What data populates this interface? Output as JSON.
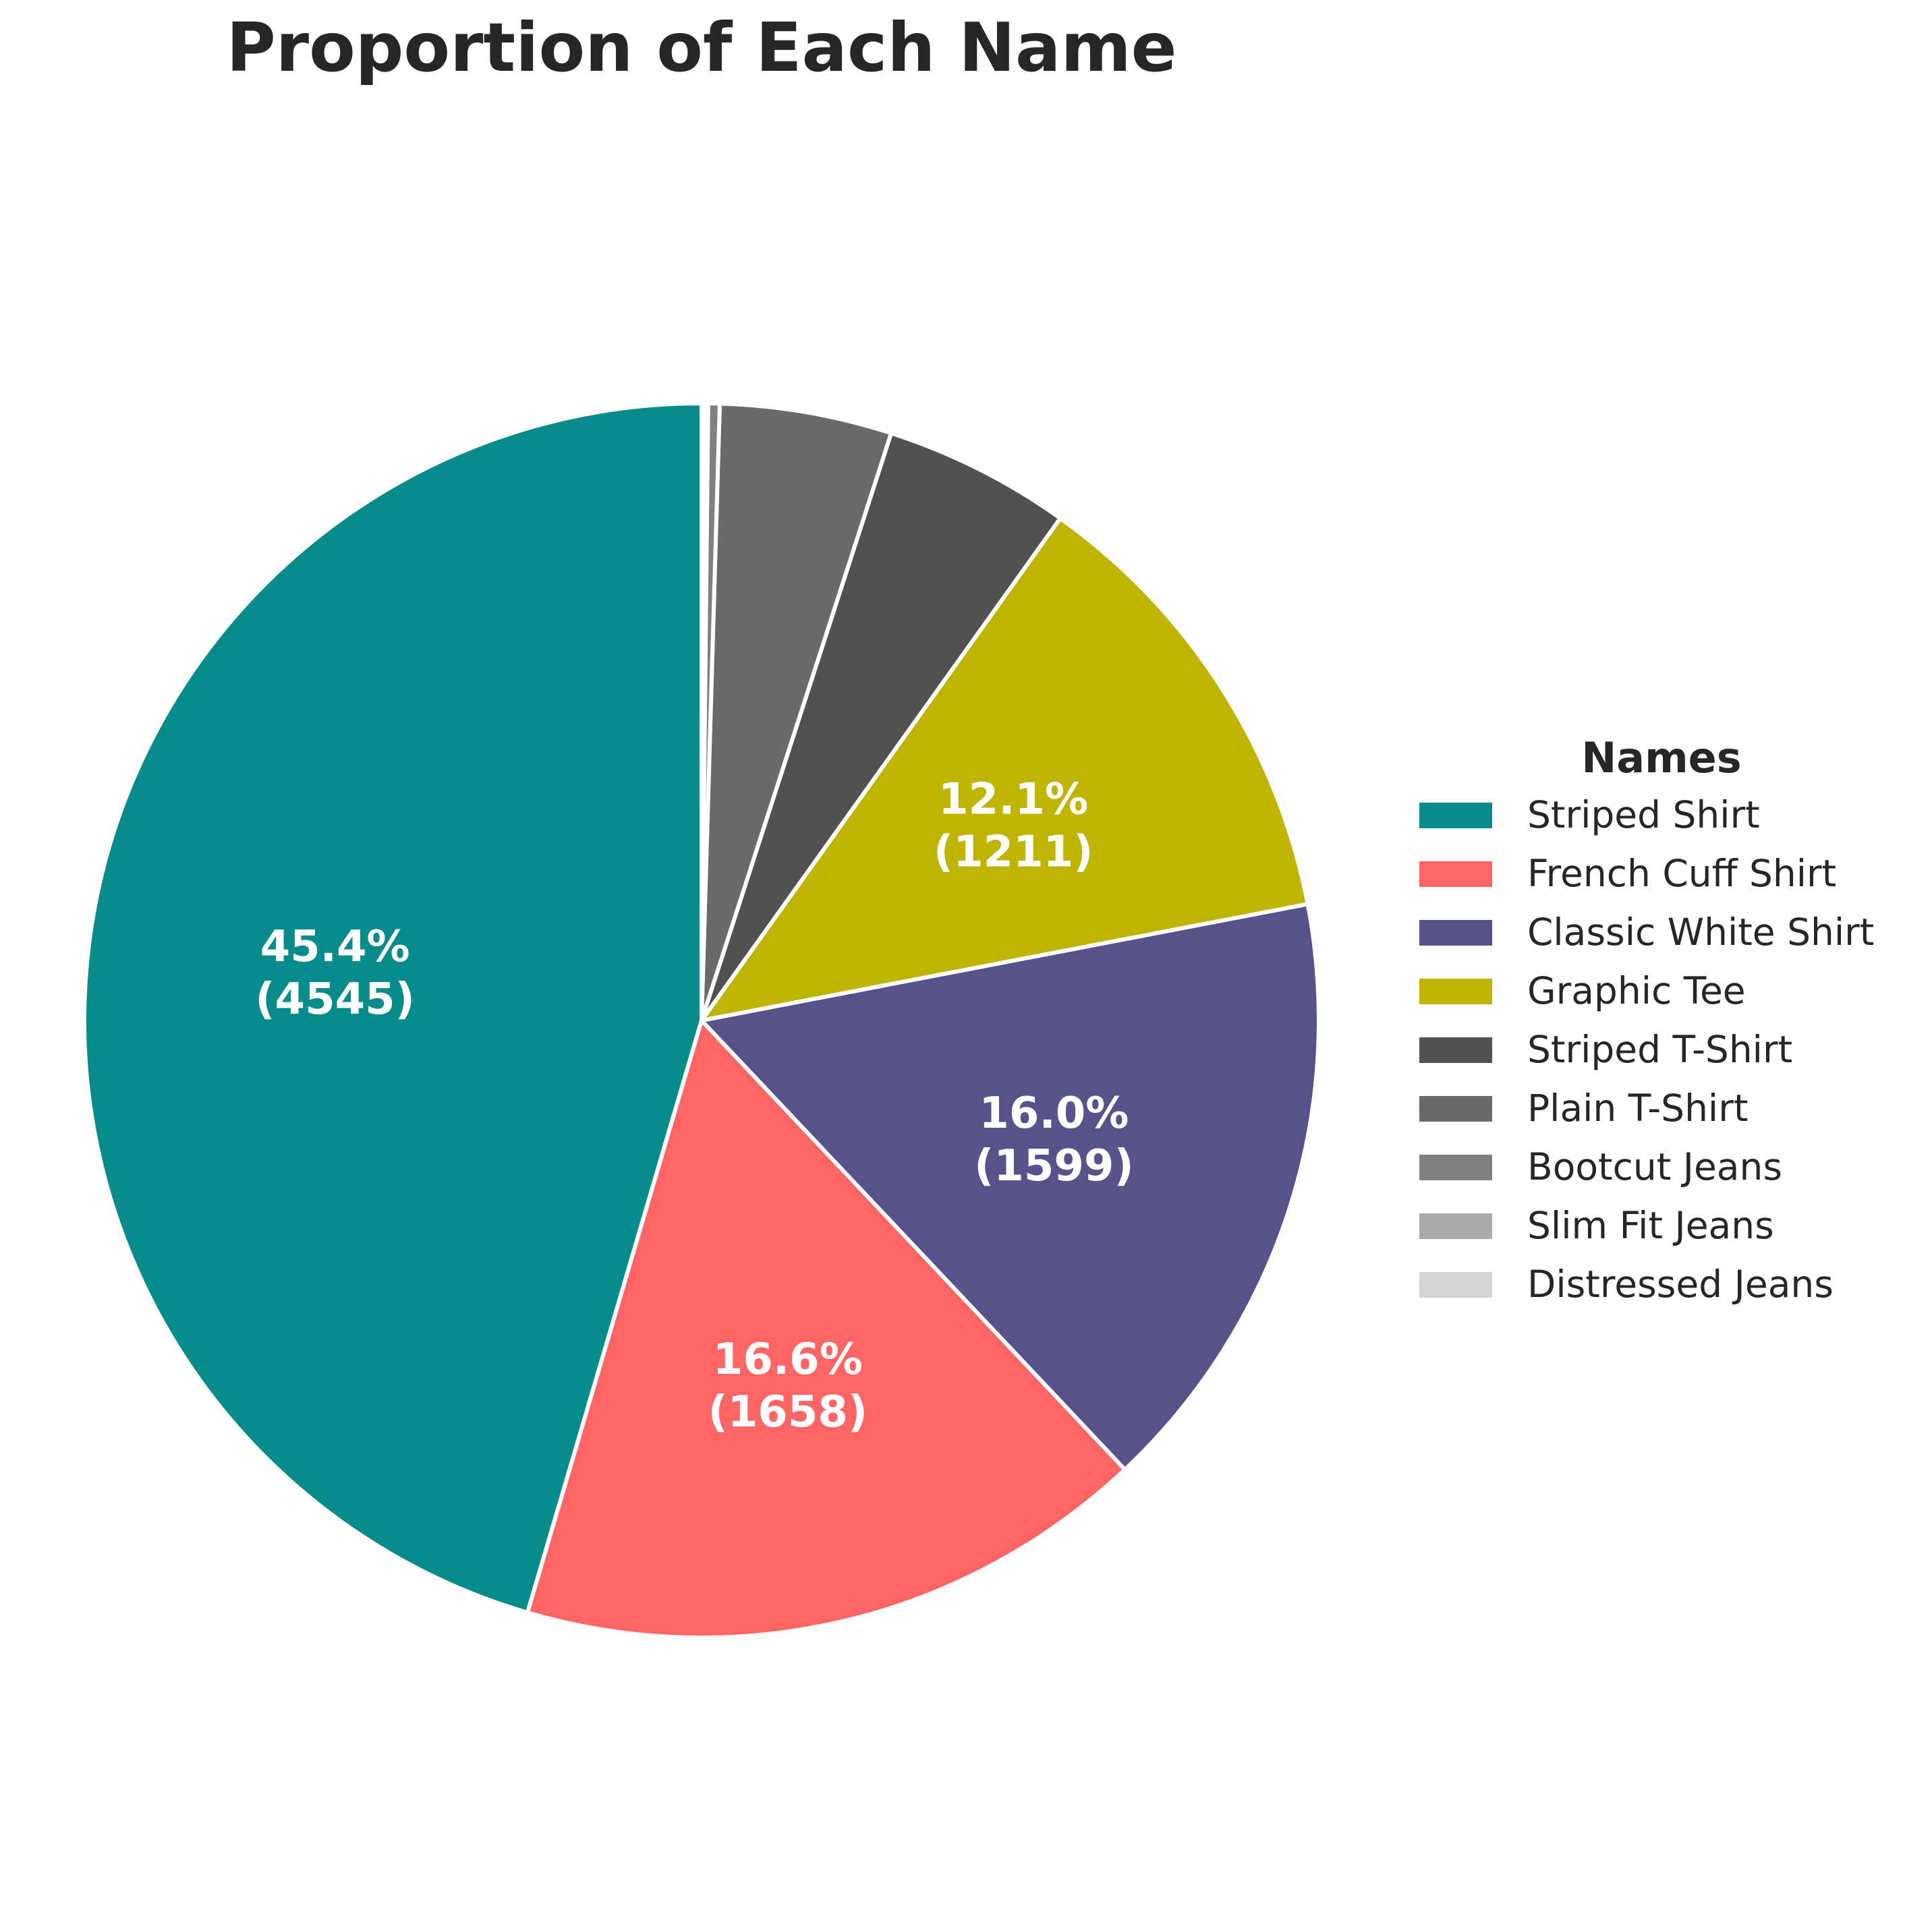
{
  "chart_data": {
    "type": "pie",
    "title": "Proportion of Each Name",
    "legend_title": "Names",
    "legend_position": "right",
    "start_angle": 90,
    "direction": "counterclockwise",
    "slices": [
      {
        "label": "Striped Shirt",
        "value": 4545,
        "pct_label": "45.4%",
        "count_label": "(4545)",
        "color": "#078b8b"
      },
      {
        "label": "French Cuff Shirt",
        "value": 1658,
        "pct_label": "16.6%",
        "count_label": "(1658)",
        "color": "#ff6565"
      },
      {
        "label": "Classic White Shirt",
        "value": 1599,
        "pct_label": "16.0%",
        "count_label": "(1599)",
        "color": "#58518a"
      },
      {
        "label": "Graphic Tee",
        "value": 1211,
        "pct_label": "12.1%",
        "count_label": "(1211)",
        "color": "#bfb404"
      },
      {
        "label": "Striped T-Shirt",
        "value": 490,
        "pct_label": "",
        "count_label": "",
        "color": "#515151"
      },
      {
        "label": "Plain T-Shirt",
        "value": 450,
        "pct_label": "",
        "count_label": "",
        "color": "#6a6a6a"
      },
      {
        "label": "Bootcut Jeans",
        "value": 30,
        "pct_label": "",
        "count_label": "",
        "color": "#808080"
      },
      {
        "label": "Slim Fit Jeans",
        "value": 10,
        "pct_label": "",
        "count_label": "",
        "color": "#aaaaaa"
      },
      {
        "label": "Distressed Jeans",
        "value": 7,
        "pct_label": "",
        "count_label": "",
        "color": "#d4d4d4"
      }
    ]
  }
}
